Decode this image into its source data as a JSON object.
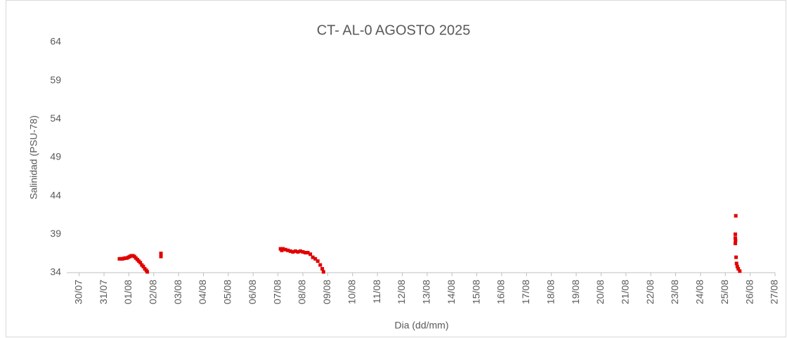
{
  "chart_data": {
    "type": "scatter",
    "title": "CT- AL-0 AGOSTO 2025",
    "x_label": "Dia (dd/mm)",
    "y_label": "Salinidad (PSU-78)",
    "color": "#e00000",
    "x": [
      1.62,
      1.68,
      1.74,
      1.8,
      1.86,
      1.92,
      1.98,
      2.04,
      2.1,
      2.16,
      2.22,
      2.28,
      2.34,
      2.4,
      2.46,
      2.52,
      2.58,
      2.64,
      2.7,
      2.74,
      3.29,
      3.29,
      8.1,
      8.15,
      8.2,
      8.3,
      8.4,
      8.5,
      8.6,
      8.7,
      8.8,
      8.9,
      9.0,
      9.1,
      9.2,
      9.3,
      9.4,
      9.5,
      9.6,
      9.7,
      9.78,
      9.83,
      26.42,
      26.4,
      26.4,
      26.41,
      26.4,
      26.43,
      26.45,
      26.48,
      26.52,
      26.58
    ],
    "values": [
      35.8,
      35.8,
      35.8,
      35.85,
      35.9,
      35.9,
      36.0,
      36.1,
      36.2,
      36.2,
      36.1,
      35.9,
      35.7,
      35.5,
      35.3,
      35.0,
      34.8,
      34.5,
      34.3,
      34.1,
      36.1,
      36.5,
      37.1,
      36.9,
      37.1,
      37.0,
      36.9,
      36.8,
      36.7,
      36.8,
      36.7,
      36.8,
      36.7,
      36.6,
      36.6,
      36.4,
      36.0,
      35.8,
      35.5,
      35.0,
      34.5,
      34.1,
      41.4,
      39.0,
      38.5,
      38.2,
      37.8,
      36.0,
      35.2,
      34.8,
      34.5,
      34.2
    ],
    "xlim": [
      -0.5,
      28
    ],
    "xticks": [
      {
        "value": 0,
        "label": "30/07"
      },
      {
        "value": 1,
        "label": "31/07"
      },
      {
        "value": 2,
        "label": "01/08"
      },
      {
        "value": 3,
        "label": "02/08"
      },
      {
        "value": 4,
        "label": "03/08"
      },
      {
        "value": 5,
        "label": "04/08"
      },
      {
        "value": 6,
        "label": "05/08"
      },
      {
        "value": 7,
        "label": "06/08"
      },
      {
        "value": 8,
        "label": "07/08"
      },
      {
        "value": 9,
        "label": "08/08"
      },
      {
        "value": 10,
        "label": "09/08"
      },
      {
        "value": 11,
        "label": "10/08"
      },
      {
        "value": 12,
        "label": "11/08"
      },
      {
        "value": 13,
        "label": "12/08"
      },
      {
        "value": 14,
        "label": "13/08"
      },
      {
        "value": 15,
        "label": "14/08"
      },
      {
        "value": 16,
        "label": "15/08"
      },
      {
        "value": 17,
        "label": "16/08"
      },
      {
        "value": 18,
        "label": "17/08"
      },
      {
        "value": 19,
        "label": "18/08"
      },
      {
        "value": 20,
        "label": "19/08"
      },
      {
        "value": 21,
        "label": "20/08"
      },
      {
        "value": 22,
        "label": "21/08"
      },
      {
        "value": 23,
        "label": "22/08"
      },
      {
        "value": 24,
        "label": "23/08"
      },
      {
        "value": 25,
        "label": "24/08"
      },
      {
        "value": 26,
        "label": "25/08"
      },
      {
        "value": 27,
        "label": "26/08"
      },
      {
        "value": 28,
        "label": "27/08"
      }
    ],
    "ylim": [
      34,
      64
    ],
    "yticks": [
      34,
      39,
      44,
      49,
      54,
      59,
      64
    ],
    "grid": false
  }
}
